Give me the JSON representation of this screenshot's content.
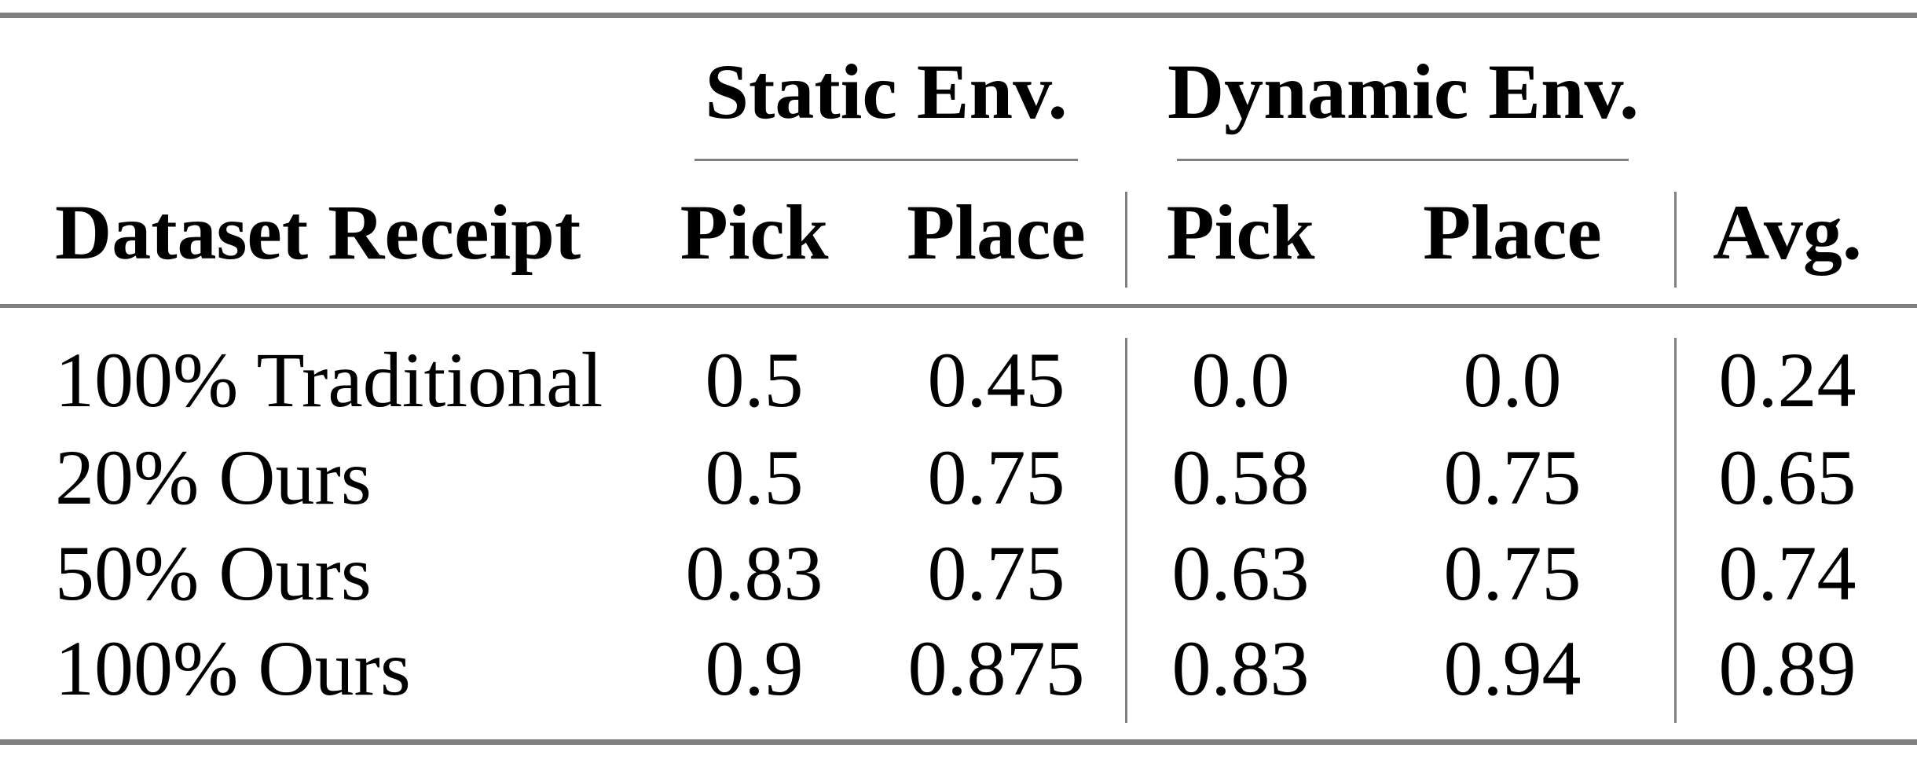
{
  "table": {
    "group_headers": [
      "Static Env.",
      "Dynamic Env."
    ],
    "columns": [
      "Dataset Receipt",
      "Pick",
      "Place",
      "Pick",
      "Place",
      "Avg."
    ],
    "rows": [
      [
        "100% Traditional",
        "0.5",
        "0.45",
        "0.0",
        "0.0",
        "0.24"
      ],
      [
        "20% Ours",
        "0.5",
        "0.75",
        "0.58",
        "0.75",
        "0.65"
      ],
      [
        "50% Ours",
        "0.83",
        "0.75",
        "0.63",
        "0.75",
        "0.74"
      ],
      [
        "100% Ours",
        "0.9",
        "0.875",
        "0.83",
        "0.94",
        "0.89"
      ]
    ],
    "rule_color": "#808080"
  }
}
